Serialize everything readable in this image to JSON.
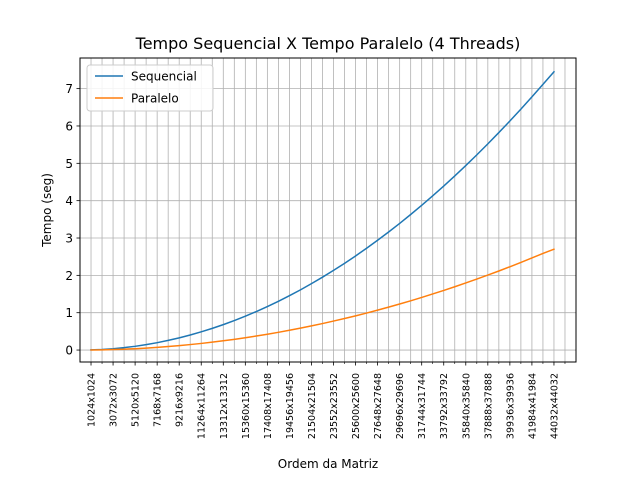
{
  "chart_data": {
    "type": "line",
    "title": "Tempo Sequencial X Tempo Paralelo (4 Threads)",
    "xlabel": "Ordem da Matriz",
    "ylabel": "Tempo (seg)",
    "x": [
      1024,
      2048,
      3072,
      4096,
      5120,
      6144,
      7168,
      8192,
      9216,
      10240,
      11264,
      12288,
      13312,
      14336,
      15360,
      16384,
      17408,
      18432,
      19456,
      20480,
      21504,
      22528,
      23552,
      24576,
      25600,
      26624,
      27648,
      28672,
      29696,
      30720,
      31744,
      32768,
      33792,
      34816,
      35840,
      36864,
      37888,
      38912,
      39936,
      40960,
      41984,
      43008,
      44032
    ],
    "xlim": [
      0,
      46080
    ],
    "ylim": [
      -0.32,
      7.82
    ],
    "yticks": [
      0,
      1,
      2,
      3,
      4,
      5,
      6,
      7
    ],
    "xtick_values": [
      1024,
      3072,
      5120,
      7168,
      9216,
      11264,
      13312,
      15360,
      17408,
      19456,
      21504,
      23552,
      25600,
      27648,
      29696,
      31744,
      33792,
      35840,
      37888,
      39936,
      41984,
      44032
    ],
    "xtick_labels": [
      "1024x1024",
      "3072x3072",
      "5120x5120",
      "7168x7168",
      "9216x9216",
      "11264x11264",
      "13312x13312",
      "15360x15360",
      "17408x17408",
      "19456x19456",
      "21504x21504",
      "23552x23552",
      "25600x25600",
      "27648x27648",
      "29696x29696",
      "31744x31744",
      "33792x33792",
      "35840x35840",
      "37888x37888",
      "39936x39936",
      "41984x41984",
      "44032x44032"
    ],
    "minor_xticks": [
      2048,
      4096,
      6144,
      8192,
      10240,
      12288,
      14336,
      16384,
      18432,
      20480,
      22528,
      24576,
      26624,
      28672,
      30720,
      32768,
      34816,
      36864,
      38912,
      40960,
      43008,
      45056
    ],
    "grid": true,
    "legend_placement": "top-left",
    "series": [
      {
        "name": "Sequencial",
        "color": "#1f77b4",
        "values": [
          0.004,
          0.016,
          0.036,
          0.064,
          0.1,
          0.145,
          0.197,
          0.258,
          0.326,
          0.403,
          0.488,
          0.58,
          0.681,
          0.79,
          0.907,
          1.032,
          1.165,
          1.306,
          1.455,
          1.612,
          1.778,
          1.951,
          2.133,
          2.322,
          2.52,
          2.726,
          2.939,
          3.161,
          3.391,
          3.629,
          3.875,
          4.13,
          4.392,
          4.662,
          4.94,
          5.226,
          5.521,
          5.823,
          6.133,
          6.452,
          6.778,
          7.113,
          7.45
        ]
      },
      {
        "name": "Paralelo",
        "color": "#ff7f0e",
        "values": [
          0.001,
          0.006,
          0.013,
          0.023,
          0.036,
          0.053,
          0.072,
          0.094,
          0.119,
          0.147,
          0.177,
          0.211,
          0.248,
          0.287,
          0.33,
          0.375,
          0.424,
          0.475,
          0.529,
          0.586,
          0.647,
          0.709,
          0.776,
          0.844,
          0.916,
          0.991,
          1.069,
          1.149,
          1.233,
          1.319,
          1.409,
          1.502,
          1.597,
          1.695,
          1.796,
          1.9,
          2.007,
          2.117,
          2.23,
          2.346,
          2.465,
          2.586,
          2.7
        ]
      }
    ]
  }
}
